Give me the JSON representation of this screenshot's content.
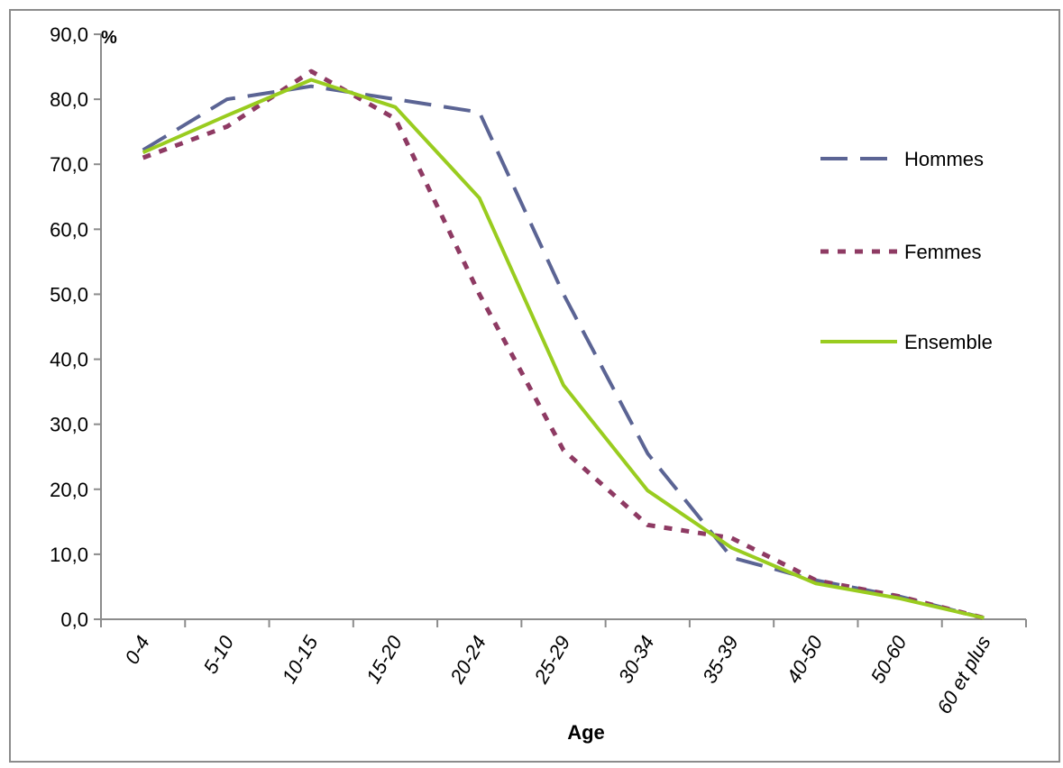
{
  "chart_data": {
    "type": "line",
    "ylabel": "%",
    "xlabel": "Age",
    "categories": [
      "0-4",
      "5-10",
      "10-15",
      "15-20",
      "20-24",
      "25-29",
      "30-34",
      "35-39",
      "40-50",
      "50-60",
      "60 et plus"
    ],
    "ylim": [
      0,
      90
    ],
    "yticks": [
      "0,0",
      "10,0",
      "20,0",
      "30,0",
      "40,0",
      "50,0",
      "60,0",
      "70,0",
      "80,0",
      "90,0"
    ],
    "grid": false,
    "legend_position": "right",
    "series": [
      {
        "name": "Hommes",
        "color": "#5B6494",
        "style": "dashed",
        "values": [
          72.2,
          80.0,
          82.0,
          80.0,
          78.0,
          50.0,
          25.5,
          9.5,
          6.0,
          3.5,
          0.2
        ]
      },
      {
        "name": "Femmes",
        "color": "#8E3A63",
        "style": "dotted",
        "values": [
          71.0,
          75.8,
          84.3,
          77.0,
          50.0,
          26.0,
          14.5,
          12.5,
          6.0,
          3.5,
          0.2
        ]
      },
      {
        "name": "Ensemble",
        "color": "#99CC1F",
        "style": "solid",
        "values": [
          71.8,
          77.5,
          83.0,
          78.8,
          64.8,
          36.0,
          19.8,
          11.0,
          5.5,
          3.2,
          0.2
        ]
      }
    ]
  }
}
